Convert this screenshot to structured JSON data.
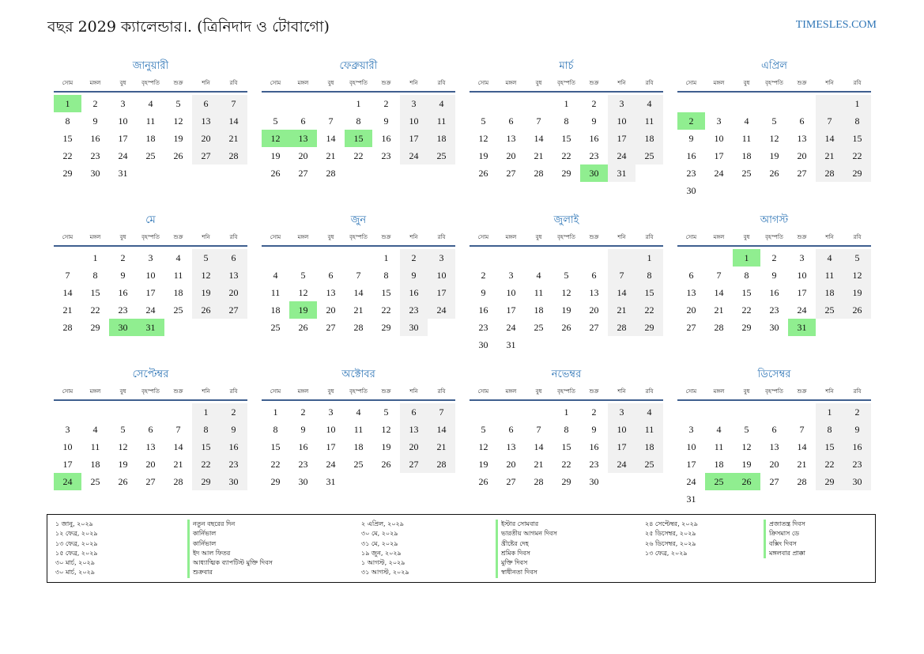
{
  "header": {
    "title": "বছর 2029 ক্যালেন্ডার।. (ত্রিনিদাদ ও টোবাগো)",
    "site": "TIMESLES.COM"
  },
  "weekdays": [
    "সোম",
    "মঙ্গল",
    "বুধ",
    "বৃহস্পতি",
    "শুক্র",
    "শনি",
    "রবি"
  ],
  "colors": {
    "accent": "#2e75b6",
    "holiday": "#90ee90",
    "weekend": "#f1f1f1",
    "rule": "#3f5f8f"
  },
  "months": [
    {
      "name": "জানুয়ারী",
      "offset": 0,
      "days": 31,
      "holidays": [
        1
      ]
    },
    {
      "name": "ফেব্রুয়ারী",
      "offset": 3,
      "days": 28,
      "holidays": [
        12,
        13,
        15
      ]
    },
    {
      "name": "মার্চ",
      "offset": 3,
      "days": 31,
      "holidays": [
        30
      ]
    },
    {
      "name": "এপ্রিল",
      "offset": 6,
      "days": 30,
      "holidays": [
        2
      ]
    },
    {
      "name": "মে",
      "offset": 1,
      "days": 31,
      "holidays": [
        30,
        31
      ]
    },
    {
      "name": "জুন",
      "offset": 4,
      "days": 30,
      "holidays": [
        19
      ]
    },
    {
      "name": "জুলাই",
      "offset": 6,
      "days": 31,
      "holidays": []
    },
    {
      "name": "আগস্ট",
      "offset": 2,
      "days": 31,
      "holidays": [
        1,
        31
      ]
    },
    {
      "name": "সেপ্টেম্বর",
      "offset": 5,
      "days": 30,
      "holidays": [
        24
      ]
    },
    {
      "name": "অক্টোবর",
      "offset": 0,
      "days": 31,
      "holidays": []
    },
    {
      "name": "নভেম্বর",
      "offset": 3,
      "days": 30,
      "holidays": []
    },
    {
      "name": "ডিসেম্বর",
      "offset": 5,
      "days": 31,
      "holidays": [
        25,
        26
      ]
    }
  ],
  "legend": [
    {
      "date": "১ জানু, ২০২৯",
      "name": "নতুন বছরের দিন"
    },
    {
      "date": "১২ ফেব্র, ২০২৯",
      "name": "কার্নিভাল"
    },
    {
      "date": "১৩ ফেব্র, ২০২৯",
      "name": "কার্নিভাল"
    },
    {
      "date": "১৫ ফেব্র, ২০২৯",
      "name": "ইদ আল ফিতর"
    },
    {
      "date": "৩০ মার্চ, ২০২৯",
      "name": "আধ্যাত্মিক ব্যাপটিস্ট মুক্তি দিবস"
    },
    {
      "date": "৩০ মার্চ, ২০২৯",
      "name": "শুক্রবার"
    },
    {
      "date": "২ এপ্রিল, ২০২৯",
      "name": "ইস্টার সোমবার"
    },
    {
      "date": "৩০ মে, ২০২৯",
      "name": "ভারতীয় আগমন দিবস"
    },
    {
      "date": "৩১ মে, ২০২৯",
      "name": "খ্রীষ্টের দেহ"
    },
    {
      "date": "১৯ জুন, ২০২৯",
      "name": "শ্রমিক দিবস"
    },
    {
      "date": "১ আগস্ট, ২০২৯",
      "name": "মুক্তি দিবস"
    },
    {
      "date": "৩১ আগস্ট, ২০২৯",
      "name": "স্বাধীনতা দিবস"
    },
    {
      "date": "২৪ সেপ্টেম্বর, ২০২৯",
      "name": "প্রজাতন্ত্র দিবস"
    },
    {
      "date": "২৫ ডিসেম্বর, ২০২৯",
      "name": "ক্রিসমাস ডে"
    },
    {
      "date": "২৬ ডিসেম্বর, ২০২৯",
      "name": "বক্সিং দিবস"
    },
    {
      "date": "১৩ ফেব্র, ২০২৯",
      "name": "মঙ্গলবার প্রাক্কা"
    }
  ]
}
